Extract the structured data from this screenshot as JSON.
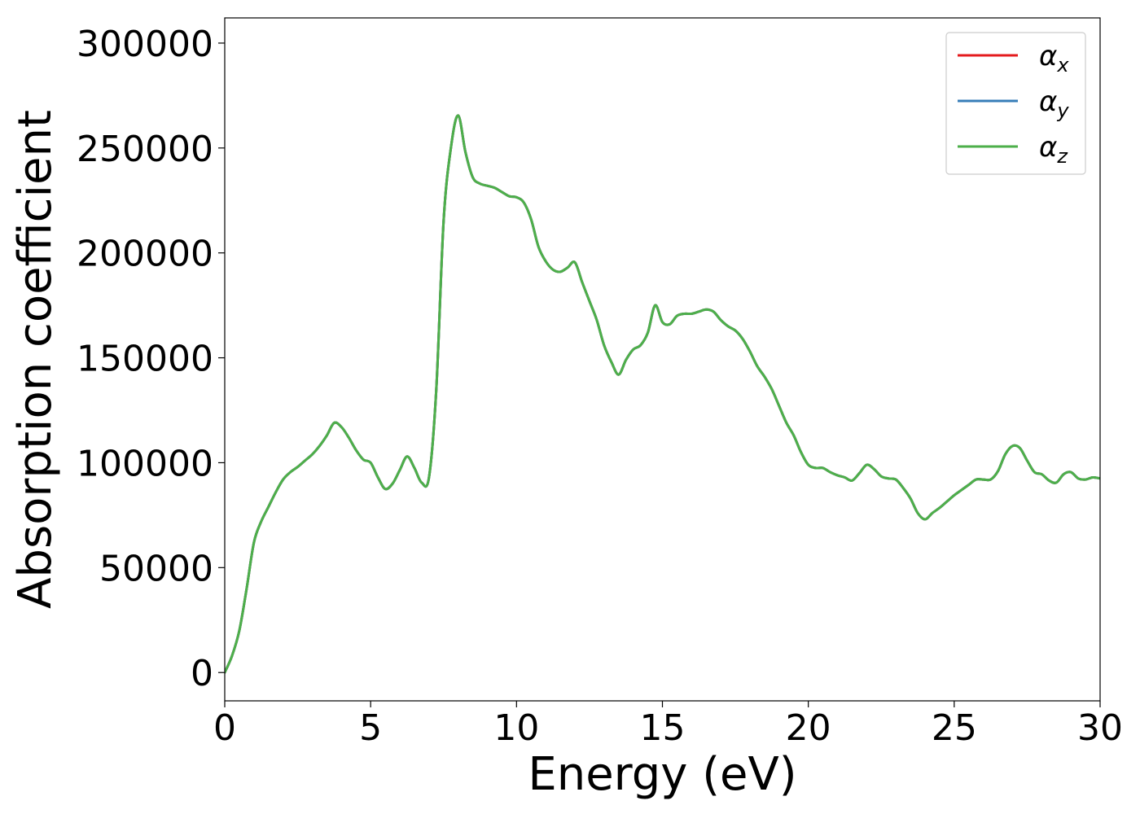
{
  "chart_data": {
    "type": "line",
    "xlabel": "Energy (eV)",
    "ylabel": "Absorption coefficient",
    "xlim": [
      0,
      30
    ],
    "ylim": [
      -13500,
      312000
    ],
    "xticks": [
      0,
      5,
      10,
      15,
      20,
      25,
      30
    ],
    "yticks": [
      0,
      50000,
      100000,
      150000,
      200000,
      250000,
      300000
    ],
    "grid": false,
    "legend_position": "top-right",
    "series": [
      {
        "name": "αx",
        "label_base": "α",
        "label_sub": "x",
        "color": "#e41a1c",
        "x": [
          0,
          0.25,
          0.5,
          0.75,
          1.0,
          1.25,
          1.5,
          1.75,
          2.0,
          2.25,
          2.5,
          2.75,
          3.0,
          3.25,
          3.5,
          3.75,
          4.0,
          4.25,
          4.5,
          4.75,
          5.0,
          5.25,
          5.5,
          5.75,
          6.0,
          6.25,
          6.5,
          6.75,
          7.0,
          7.25,
          7.5,
          7.75,
          8.0,
          8.25,
          8.5,
          8.75,
          9.0,
          9.25,
          9.5,
          9.75,
          10.0,
          10.25,
          10.5,
          10.75,
          11.0,
          11.25,
          11.5,
          11.75,
          12.0,
          12.25,
          12.5,
          12.75,
          13.0,
          13.25,
          13.5,
          13.75,
          14.0,
          14.25,
          14.5,
          14.75,
          15.0,
          15.25,
          15.5,
          15.75,
          16.0,
          16.25,
          16.5,
          16.75,
          17.0,
          17.25,
          17.5,
          17.75,
          18.0,
          18.25,
          18.5,
          18.75,
          19.0,
          19.25,
          19.5,
          19.75,
          20.0,
          20.25,
          20.5,
          20.75,
          21.0,
          21.25,
          21.5,
          21.75,
          22.0,
          22.25,
          22.5,
          22.75,
          23.0,
          23.25,
          23.5,
          23.75,
          24.0,
          24.25,
          24.5,
          24.75,
          25.0,
          25.25,
          25.5,
          25.75,
          26.0,
          26.25,
          26.5,
          26.75,
          27.0,
          27.25,
          27.5,
          27.75,
          28.0,
          28.25,
          28.5,
          28.75,
          29.0,
          29.25,
          29.5,
          29.75,
          30.0
        ],
        "y": [
          0,
          8000,
          20000,
          40000,
          62000,
          72000,
          79000,
          86000,
          92000,
          95500,
          98000,
          101000,
          104000,
          108000,
          113000,
          119000,
          117000,
          112000,
          106000,
          101500,
          100000,
          93000,
          87500,
          90000,
          96500,
          103000,
          97500,
          90500,
          93000,
          135000,
          215000,
          250000,
          265500,
          248000,
          236000,
          233000,
          232000,
          231000,
          229000,
          227000,
          226500,
          224000,
          216000,
          203000,
          196000,
          192000,
          191000,
          193000,
          195500,
          186000,
          177000,
          168000,
          156000,
          148000,
          142000,
          149000,
          154000,
          156000,
          162000,
          175000,
          167000,
          166000,
          170000,
          171000,
          171000,
          172000,
          173000,
          172000,
          168000,
          165000,
          163000,
          159000,
          153000,
          146000,
          141000,
          135000,
          127000,
          119000,
          113000,
          105000,
          99000,
          97500,
          97500,
          95500,
          94000,
          93000,
          91500,
          95000,
          99000,
          97000,
          93500,
          92500,
          92000,
          88000,
          83000,
          76000,
          73000,
          76000,
          78500,
          81500,
          84500,
          87000,
          89500,
          92000,
          92000,
          92000,
          96000,
          104000,
          108000,
          107000,
          101000,
          95500,
          94500,
          91500,
          90500,
          94500,
          95500,
          92500,
          92000,
          93000,
          92500
        ]
      },
      {
        "name": "αy",
        "label_base": "α",
        "label_sub": "y",
        "color": "#377eb8",
        "x": [
          0,
          0.25,
          0.5,
          0.75,
          1.0,
          1.25,
          1.5,
          1.75,
          2.0,
          2.25,
          2.5,
          2.75,
          3.0,
          3.25,
          3.5,
          3.75,
          4.0,
          4.25,
          4.5,
          4.75,
          5.0,
          5.25,
          5.5,
          5.75,
          6.0,
          6.25,
          6.5,
          6.75,
          7.0,
          7.25,
          7.5,
          7.75,
          8.0,
          8.25,
          8.5,
          8.75,
          9.0,
          9.25,
          9.5,
          9.75,
          10.0,
          10.25,
          10.5,
          10.75,
          11.0,
          11.25,
          11.5,
          11.75,
          12.0,
          12.25,
          12.5,
          12.75,
          13.0,
          13.25,
          13.5,
          13.75,
          14.0,
          14.25,
          14.5,
          14.75,
          15.0,
          15.25,
          15.5,
          15.75,
          16.0,
          16.25,
          16.5,
          16.75,
          17.0,
          17.25,
          17.5,
          17.75,
          18.0,
          18.25,
          18.5,
          18.75,
          19.0,
          19.25,
          19.5,
          19.75,
          20.0,
          20.25,
          20.5,
          20.75,
          21.0,
          21.25,
          21.5,
          21.75,
          22.0,
          22.25,
          22.5,
          22.75,
          23.0,
          23.25,
          23.5,
          23.75,
          24.0,
          24.25,
          24.5,
          24.75,
          25.0,
          25.25,
          25.5,
          25.75,
          26.0,
          26.25,
          26.5,
          26.75,
          27.0,
          27.25,
          27.5,
          27.75,
          28.0,
          28.25,
          28.5,
          28.75,
          29.0,
          29.25,
          29.5,
          29.75,
          30.0
        ],
        "y": [
          0,
          8000,
          20000,
          40000,
          62000,
          72000,
          79000,
          86000,
          92000,
          95500,
          98000,
          101000,
          104000,
          108000,
          113000,
          119000,
          117000,
          112000,
          106000,
          101500,
          100000,
          93000,
          87500,
          90000,
          96500,
          103000,
          97500,
          90500,
          93000,
          135000,
          215000,
          250000,
          265500,
          248000,
          236000,
          233000,
          232000,
          231000,
          229000,
          227000,
          226500,
          224000,
          216000,
          203000,
          196000,
          192000,
          191000,
          193000,
          195500,
          186000,
          177000,
          168000,
          156000,
          148000,
          142000,
          149000,
          154000,
          156000,
          162000,
          175000,
          167000,
          166000,
          170000,
          171000,
          171000,
          172000,
          173000,
          172000,
          168000,
          165000,
          163000,
          159000,
          153000,
          146000,
          141000,
          135000,
          127000,
          119000,
          113000,
          105000,
          99000,
          97500,
          97500,
          95500,
          94000,
          93000,
          91500,
          95000,
          99000,
          97000,
          93500,
          92500,
          92000,
          88000,
          83000,
          76000,
          73000,
          76000,
          78500,
          81500,
          84500,
          87000,
          89500,
          92000,
          92000,
          92000,
          96000,
          104000,
          108000,
          107000,
          101000,
          95500,
          94500,
          91500,
          90500,
          94500,
          95500,
          92500,
          92000,
          93000,
          92500
        ]
      },
      {
        "name": "αz",
        "label_base": "α",
        "label_sub": "z",
        "color": "#4daf4a",
        "x": [
          0,
          0.25,
          0.5,
          0.75,
          1.0,
          1.25,
          1.5,
          1.75,
          2.0,
          2.25,
          2.5,
          2.75,
          3.0,
          3.25,
          3.5,
          3.75,
          4.0,
          4.25,
          4.5,
          4.75,
          5.0,
          5.25,
          5.5,
          5.75,
          6.0,
          6.25,
          6.5,
          6.75,
          7.0,
          7.25,
          7.5,
          7.75,
          8.0,
          8.25,
          8.5,
          8.75,
          9.0,
          9.25,
          9.5,
          9.75,
          10.0,
          10.25,
          10.5,
          10.75,
          11.0,
          11.25,
          11.5,
          11.75,
          12.0,
          12.25,
          12.5,
          12.75,
          13.0,
          13.25,
          13.5,
          13.75,
          14.0,
          14.25,
          14.5,
          14.75,
          15.0,
          15.25,
          15.5,
          15.75,
          16.0,
          16.25,
          16.5,
          16.75,
          17.0,
          17.25,
          17.5,
          17.75,
          18.0,
          18.25,
          18.5,
          18.75,
          19.0,
          19.25,
          19.5,
          19.75,
          20.0,
          20.25,
          20.5,
          20.75,
          21.0,
          21.25,
          21.5,
          21.75,
          22.0,
          22.25,
          22.5,
          22.75,
          23.0,
          23.25,
          23.5,
          23.75,
          24.0,
          24.25,
          24.5,
          24.75,
          25.0,
          25.25,
          25.5,
          25.75,
          26.0,
          26.25,
          26.5,
          26.75,
          27.0,
          27.25,
          27.5,
          27.75,
          28.0,
          28.25,
          28.5,
          28.75,
          29.0,
          29.25,
          29.5,
          29.75,
          30.0
        ],
        "y": [
          0,
          8000,
          20000,
          40000,
          62000,
          72000,
          79000,
          86000,
          92000,
          95500,
          98000,
          101000,
          104000,
          108000,
          113000,
          119000,
          117000,
          112000,
          106000,
          101500,
          100000,
          93000,
          87500,
          90000,
          96500,
          103000,
          97500,
          90500,
          93000,
          135000,
          215000,
          250000,
          265500,
          248000,
          236000,
          233000,
          232000,
          231000,
          229000,
          227000,
          226500,
          224000,
          216000,
          203000,
          196000,
          192000,
          191000,
          193000,
          195500,
          186000,
          177000,
          168000,
          156000,
          148000,
          142000,
          149000,
          154000,
          156000,
          162000,
          175000,
          167000,
          166000,
          170000,
          171000,
          171000,
          172000,
          173000,
          172000,
          168000,
          165000,
          163000,
          159000,
          153000,
          146000,
          141000,
          135000,
          127000,
          119000,
          113000,
          105000,
          99000,
          97500,
          97500,
          95500,
          94000,
          93000,
          91500,
          95000,
          99000,
          97000,
          93500,
          92500,
          92000,
          88000,
          83000,
          76000,
          73000,
          76000,
          78500,
          81500,
          84500,
          87000,
          89500,
          92000,
          92000,
          92000,
          96000,
          104000,
          108000,
          107000,
          101000,
          95500,
          94500,
          91500,
          90500,
          94500,
          95500,
          92500,
          92000,
          93000,
          92500
        ]
      }
    ]
  }
}
